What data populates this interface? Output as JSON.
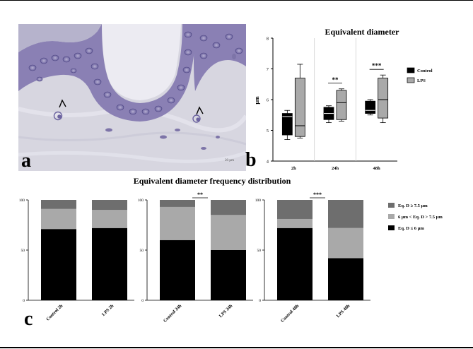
{
  "panel_a": {
    "letter": "a",
    "scale_bar_text": "20 µm"
  },
  "panel_b": {
    "letter": "b"
  },
  "panel_c": {
    "letter": "c"
  },
  "colors": {
    "black": "#000000",
    "dark_gray": "#6e6e6e",
    "light_gray": "#a9a9a9",
    "stain_purple": "#7d74a8",
    "tissue_bg": "#d9d8e2"
  },
  "chart_data": [
    {
      "type": "boxplot",
      "title": "Equivalent diameter",
      "xlabel": "",
      "ylabel": "µm",
      "ylim": [
        4,
        8
      ],
      "yticks": [
        "4",
        "5",
        "6",
        "7",
        "8"
      ],
      "grid": false,
      "legend_position": "right",
      "categories": [
        "2h",
        "24h",
        "48h"
      ],
      "series": [
        {
          "name": "Control",
          "color": "#000000",
          "boxes": [
            {
              "min": 4.7,
              "q1": 4.85,
              "median": 5.45,
              "q3": 5.55,
              "max": 5.65
            },
            {
              "min": 5.25,
              "q1": 5.35,
              "median": 5.55,
              "q3": 5.75,
              "max": 5.8
            },
            {
              "min": 5.5,
              "q1": 5.55,
              "median": 5.65,
              "q3": 5.95,
              "max": 6.0
            }
          ]
        },
        {
          "name": "LPS",
          "color": "#a9a9a9",
          "boxes": [
            {
              "min": 4.75,
              "q1": 4.8,
              "median": 5.15,
              "q3": 6.7,
              "max": 7.15
            },
            {
              "min": 5.3,
              "q1": 5.35,
              "median": 5.9,
              "q3": 6.3,
              "max": 6.35
            },
            {
              "min": 5.25,
              "q1": 5.4,
              "median": 6.0,
              "q3": 6.7,
              "max": 6.8
            }
          ]
        }
      ],
      "annotations": [
        {
          "category": "24h",
          "text": "**"
        },
        {
          "category": "48h",
          "text": "***"
        }
      ]
    },
    {
      "type": "bar",
      "stacked": true,
      "title": "Equivalent diameter frequency distribution",
      "ylim": [
        0,
        100
      ],
      "yticks": [
        "0",
        "50",
        "100"
      ],
      "legend_position": "right",
      "legend": [
        {
          "label": "Eq. D ≥ 7.5 µm",
          "color": "#6e6e6e"
        },
        {
          "label": "6 µm < Eq. D > 7.5 µm",
          "color": "#a9a9a9"
        },
        {
          "label": "Eq. D ≤ 6 µm",
          "color": "#000000"
        }
      ],
      "groups": [
        {
          "categories": [
            "Control 2h",
            "LPS 2h"
          ],
          "small": [
            71,
            72
          ],
          "medium": [
            20,
            18
          ],
          "large": [
            9,
            10
          ],
          "annotation": ""
        },
        {
          "categories": [
            "Control 24h",
            "LPS 24h"
          ],
          "small": [
            60,
            50
          ],
          "medium": [
            33,
            35
          ],
          "large": [
            7,
            15
          ],
          "annotation": "**"
        },
        {
          "categories": [
            "Control 48h",
            "LPS 48h"
          ],
          "small": [
            72,
            42
          ],
          "medium": [
            9,
            30
          ],
          "large": [
            19,
            28
          ],
          "annotation": "***"
        }
      ]
    }
  ]
}
